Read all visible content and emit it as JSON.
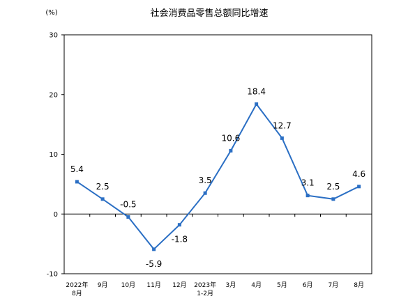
{
  "chart_data": {
    "type": "line",
    "title": "社会消费品零售总额同比增速",
    "ylabel": "(%)",
    "xlabel": "",
    "ylim": [
      -10,
      30
    ],
    "yticks": [
      30,
      20,
      10,
      0,
      -10
    ],
    "categories": [
      [
        "2022年",
        "8月"
      ],
      [
        "9月"
      ],
      [
        "10月"
      ],
      [
        "11月"
      ],
      [
        "12月"
      ],
      [
        "2023年",
        "1-2月"
      ],
      [
        "3月"
      ],
      [
        "4月"
      ],
      [
        "5月"
      ],
      [
        "6月"
      ],
      [
        "7月"
      ],
      [
        "8月"
      ]
    ],
    "values": [
      5.4,
      2.5,
      -0.5,
      -5.9,
      -1.8,
      3.5,
      10.6,
      18.4,
      12.7,
      3.1,
      2.5,
      4.6
    ],
    "labels": [
      "5.4",
      "2.5",
      "-0.5",
      "-5.9",
      "-1.8",
      "3.5",
      "10.6",
      "18.4",
      "12.7",
      "3.1",
      "2.5",
      "4.6"
    ],
    "label_side": [
      "above",
      "above",
      "above",
      "below",
      "below",
      "above",
      "above",
      "above",
      "above",
      "above",
      "above",
      "above"
    ],
    "series_color": "#2B6FC4",
    "grid": false
  }
}
